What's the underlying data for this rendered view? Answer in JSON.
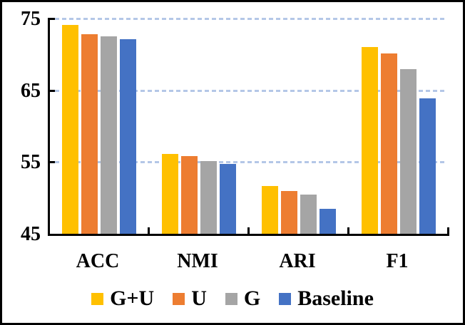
{
  "chart_data": {
    "type": "bar",
    "categories": [
      "ACC",
      "NMI",
      "ARI",
      "F1"
    ],
    "series": [
      {
        "name": "G+U",
        "color": "#FFC000",
        "values": [
          74.1,
          56.1,
          51.7,
          71.0
        ]
      },
      {
        "name": "U",
        "color": "#ED7D31",
        "values": [
          72.8,
          55.8,
          51.0,
          70.1
        ]
      },
      {
        "name": "G",
        "color": "#A5A5A5",
        "values": [
          72.5,
          55.1,
          50.5,
          67.9
        ]
      },
      {
        "name": "Baseline",
        "color": "#4472C4",
        "values": [
          72.1,
          54.7,
          48.5,
          63.9
        ]
      }
    ],
    "ylim": [
      45,
      75
    ],
    "ytick_labels": [
      "75",
      "65",
      "55",
      "45"
    ],
    "yticks": [
      75,
      65,
      55,
      45
    ],
    "gridlines": [
      75,
      65,
      55
    ],
    "grid_on": true,
    "grid_color": "#B4C7E7",
    "axis_color": "#000000",
    "legend_position": "bottom",
    "title": "",
    "xlabel": "",
    "ylabel": ""
  }
}
